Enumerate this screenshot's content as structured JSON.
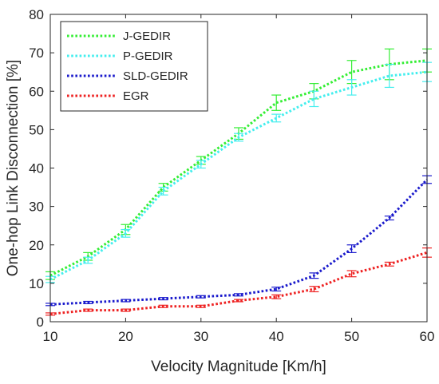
{
  "chart_data": {
    "type": "line",
    "title": "",
    "xlabel": "Velocity Magnitude [Km/h]",
    "ylabel": "One-hop Link Disconnection [%]",
    "x": [
      10,
      15,
      20,
      25,
      30,
      35,
      40,
      45,
      50,
      55,
      60
    ],
    "xlim": [
      10,
      60
    ],
    "ylim": [
      0,
      80
    ],
    "xticks": [
      10,
      20,
      30,
      40,
      50,
      60
    ],
    "yticks": [
      0,
      10,
      20,
      30,
      40,
      50,
      60,
      70,
      80
    ],
    "grid": false,
    "legend_position": "top-left",
    "series": [
      {
        "name": "J-GEDIR",
        "color": "#33ee33",
        "values": [
          12,
          17,
          24,
          35,
          42,
          49,
          57,
          60,
          65,
          67,
          68
        ],
        "error": [
          1,
          1,
          1.3,
          1,
          1,
          1.5,
          2,
          2,
          3,
          4,
          3
        ]
      },
      {
        "name": "P-GEDIR",
        "color": "#44eeee",
        "values": [
          11,
          16,
          23,
          34,
          41,
          48,
          53,
          58,
          61,
          64,
          65
        ],
        "error": [
          0.8,
          0.8,
          1,
          1,
          1,
          1,
          1,
          2,
          2,
          3,
          2.5
        ]
      },
      {
        "name": "SLD-GEDIR",
        "color": "#1a1acc",
        "values": [
          4.5,
          5,
          5.5,
          6,
          6.5,
          7,
          8.5,
          12,
          19,
          27,
          37
        ],
        "error": [
          0.3,
          0.3,
          0.3,
          0.3,
          0.3,
          0.3,
          0.5,
          0.7,
          1,
          0.5,
          1
        ]
      },
      {
        "name": "EGR",
        "color": "#ee2222",
        "values": [
          2,
          3,
          3,
          4,
          4,
          5.5,
          6.5,
          8.5,
          12.5,
          15,
          18
        ],
        "error": [
          0.3,
          0.3,
          0.3,
          0.3,
          0.3,
          0.3,
          0.5,
          0.7,
          0.8,
          0.5,
          1.2
        ]
      }
    ]
  }
}
